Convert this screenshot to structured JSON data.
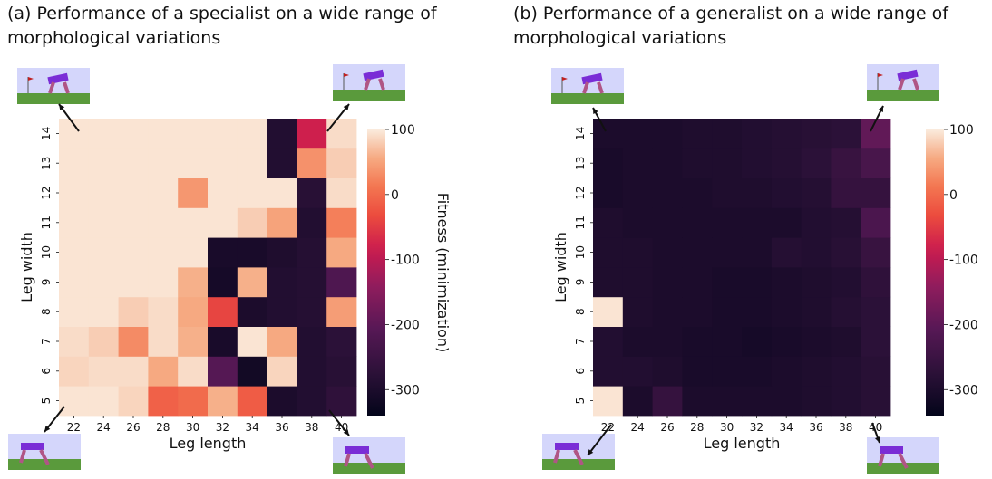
{
  "colors": {
    "text": "#111111",
    "sky": "#d4d6fb",
    "ground": "#5a9a3c",
    "robot_body": "#7a2dd6",
    "robot_leg": "#b05585",
    "flag": "#c02020"
  },
  "chart_data": [
    {
      "type": "heatmap",
      "title": "(a) Performance of a specialist on a wide range of morphological variations",
      "xlabel": "Leg length",
      "ylabel": "Leg width",
      "colorbar_label": "Fitness (minimization)",
      "colorbar_ticks": [
        "100",
        "0",
        "-100",
        "-200",
        "-300"
      ],
      "colorbar_range": [
        -340,
        100
      ],
      "x": [
        "22",
        "24",
        "26",
        "28",
        "30",
        "32",
        "34",
        "36",
        "38",
        "40"
      ],
      "y": [
        "5",
        "6",
        "7",
        "8",
        "9",
        "10",
        "11",
        "12",
        "13",
        "14"
      ],
      "values": [
        [
          95,
          95,
          85,
          -10,
          0,
          60,
          -15,
          -300,
          -290,
          -270
        ],
        [
          85,
          90,
          90,
          55,
          90,
          -210,
          -315,
          85,
          -290,
          -280
        ],
        [
          90,
          80,
          30,
          90,
          60,
          -305,
          95,
          55,
          -290,
          -275
        ],
        [
          95,
          95,
          80,
          90,
          55,
          -40,
          -300,
          -290,
          -285,
          45
        ],
        [
          95,
          95,
          95,
          95,
          60,
          -310,
          60,
          -290,
          -285,
          -220
        ],
        [
          95,
          95,
          95,
          95,
          95,
          -305,
          -305,
          -295,
          -285,
          55
        ],
        [
          95,
          95,
          95,
          95,
          95,
          95,
          80,
          50,
          -290,
          20
        ],
        [
          95,
          95,
          95,
          95,
          40,
          95,
          95,
          95,
          -280,
          90
        ],
        [
          95,
          95,
          95,
          95,
          95,
          95,
          95,
          -290,
          35,
          80
        ],
        [
          95,
          95,
          95,
          95,
          95,
          95,
          95,
          -290,
          -80,
          90
        ]
      ]
    },
    {
      "type": "heatmap",
      "title": "(b) Performance of a generalist on a wide range of morphological variations",
      "xlabel": "Leg length",
      "ylabel": "Leg width",
      "colorbar_label": "Fitness (minimization)",
      "colorbar_ticks": [
        "100",
        "0",
        "-100",
        "-200",
        "-300"
      ],
      "colorbar_range": [
        -340,
        100
      ],
      "x": [
        "22",
        "24",
        "26",
        "28",
        "30",
        "32",
        "34",
        "36",
        "38",
        "40"
      ],
      "y": [
        "5",
        "6",
        "7",
        "8",
        "9",
        "10",
        "11",
        "12",
        "13",
        "14"
      ],
      "values": [
        [
          95,
          -300,
          -260,
          -300,
          -300,
          -300,
          -300,
          -295,
          -290,
          -280
        ],
        [
          -290,
          -290,
          -295,
          -305,
          -305,
          -305,
          -300,
          -295,
          -290,
          -280
        ],
        [
          -290,
          -300,
          -300,
          -305,
          -305,
          -310,
          -305,
          -300,
          -295,
          -275
        ],
        [
          95,
          -295,
          -300,
          -300,
          -305,
          -305,
          -300,
          -295,
          -285,
          -275
        ],
        [
          -295,
          -295,
          -300,
          -300,
          -305,
          -305,
          -300,
          -295,
          -290,
          -270
        ],
        [
          -295,
          -295,
          -300,
          -300,
          -300,
          -300,
          -285,
          -290,
          -280,
          -255
        ],
        [
          -295,
          -300,
          -300,
          -300,
          -300,
          -300,
          -300,
          -290,
          -285,
          -225
        ],
        [
          -305,
          -300,
          -300,
          -300,
          -295,
          -295,
          -290,
          -285,
          -260,
          -260
        ],
        [
          -305,
          -300,
          -300,
          -295,
          -295,
          -290,
          -285,
          -275,
          -255,
          -230
        ],
        [
          -300,
          -300,
          -300,
          -295,
          -295,
          -290,
          -285,
          -280,
          -275,
          -195
        ]
      ]
    }
  ]
}
